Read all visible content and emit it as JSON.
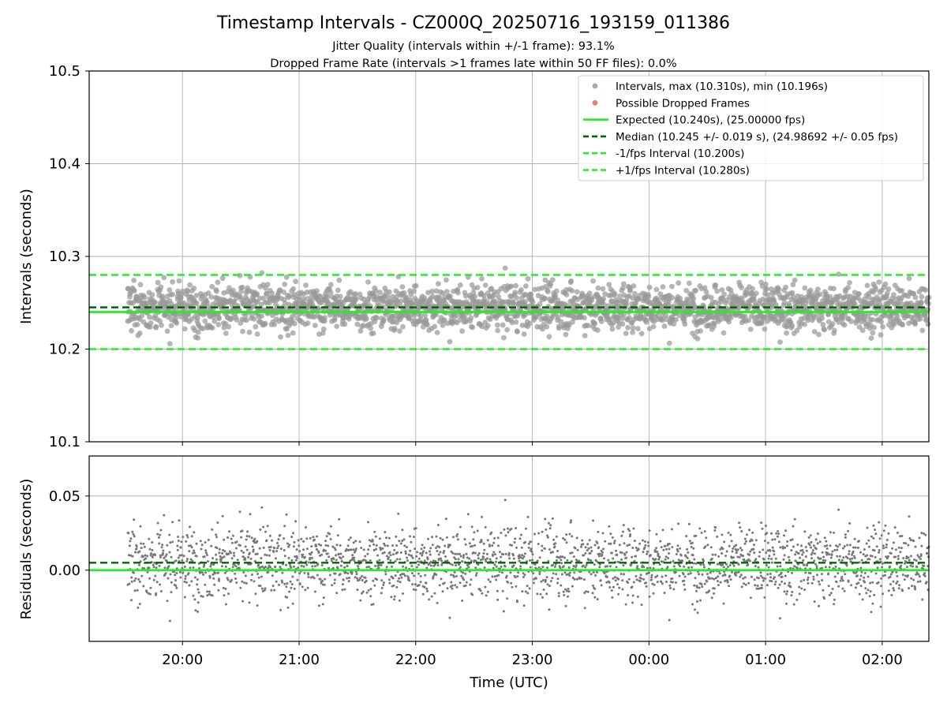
{
  "chart_data": {
    "type": "scatter",
    "title": "Timestamp Intervals - CZ000Q_20250716_193159_011386",
    "subtitles": [
      "Jitter Quality (intervals within +/-1 frame): 93.1%",
      "Dropped Frame Rate (intervals >1 frames late within 50 FF files): 0.0%"
    ],
    "xlabel": "Time (UTC)",
    "x_tick_labels": [
      "20:00",
      "21:00",
      "22:00",
      "23:00",
      "00:00",
      "01:00",
      "02:00"
    ],
    "x_tick_hours": [
      20,
      21,
      22,
      23,
      24,
      25,
      26
    ],
    "x_range_hours": [
      19.2,
      26.4
    ],
    "x_data_range_hours": [
      19.53,
      26.4
    ],
    "grid": true,
    "top_panel": {
      "ylabel": "Intervals (seconds)",
      "ylim": [
        10.1,
        10.5
      ],
      "y_ticks": [
        10.1,
        10.2,
        10.3,
        10.4,
        10.5
      ],
      "y_tick_labels": [
        "10.1",
        "10.2",
        "10.3",
        "10.4",
        "10.5"
      ],
      "max_interval": 10.31,
      "min_interval": 10.196,
      "expected": 10.24,
      "median": 10.245,
      "lower_bound": 10.2,
      "upper_bound": 10.28,
      "dropped_frames": []
    },
    "bottom_panel": {
      "ylabel": "Residuals (seconds)",
      "ylim": [
        -0.048,
        0.077
      ],
      "y_ticks": [
        0.0,
        0.05
      ],
      "y_tick_labels": [
        "0.00",
        "0.05"
      ],
      "expected_residual": 0.0,
      "median_residual": 0.005
    },
    "legend": {
      "placement": "upper-right",
      "entries": [
        {
          "label": "Intervals, max (10.310s), min (10.196s)",
          "marker": "point",
          "color": "#999999"
        },
        {
          "label": "Possible Dropped Frames",
          "marker": "point",
          "color": "#f06060"
        },
        {
          "label": "Expected (10.240s), (25.00000 fps)",
          "marker": "solid-line",
          "color": "#22ee22"
        },
        {
          "label": "Median (10.245 +/- 0.019 s), (24.98692 +/- 0.05 fps)",
          "marker": "dashed-line",
          "color": "#006400"
        },
        {
          "label": "-1/fps Interval (10.200s)",
          "marker": "dashed-line",
          "color": "#22ee22"
        },
        {
          "label": "+1/fps Interval (10.280s)",
          "marker": "dashed-line",
          "color": "#22ee22"
        }
      ]
    },
    "colors": {
      "points_top": "#999999",
      "points_bottom": "#777777",
      "expected_line": "#22ee22",
      "median_line": "#006400",
      "bound_line": "#22ee22"
    }
  }
}
